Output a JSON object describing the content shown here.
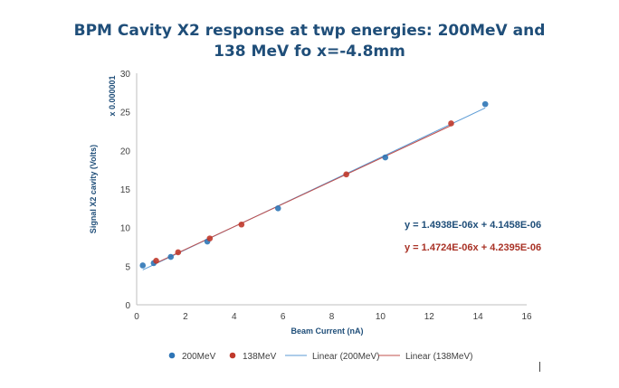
{
  "chart_data": {
    "type": "scatter",
    "title": [
      "BPM Cavity X2 response at twp energies: 200MeV and",
      "138 MeV fo x=-4.8mm"
    ],
    "xlabel": "Beam Current (nA)",
    "ylabel": "Signal X2 cavity (Volts)",
    "yscale_label": "x 0.000001",
    "xlim": [
      0,
      16
    ],
    "ylim": [
      0,
      30
    ],
    "xticks": [
      "0",
      "2",
      "4",
      "6",
      "8",
      "10",
      "12",
      "14",
      "16"
    ],
    "yticks": [
      "0",
      "5",
      "10",
      "15",
      "20",
      "25",
      "30"
    ],
    "grid": false,
    "legend_position": "bottom",
    "series": [
      {
        "name": "200MeV",
        "kind": "points",
        "color": "#2e75b6",
        "points": [
          [
            0.25,
            5.1
          ],
          [
            0.7,
            5.4
          ],
          [
            1.4,
            6.2
          ],
          [
            2.9,
            8.2
          ],
          [
            5.8,
            12.5
          ],
          [
            10.2,
            19.1
          ],
          [
            14.3,
            26.0
          ]
        ]
      },
      {
        "name": "138MeV",
        "kind": "points",
        "color": "#c0392b",
        "points": [
          [
            0.8,
            5.7
          ],
          [
            1.7,
            6.8
          ],
          [
            3.0,
            8.6
          ],
          [
            4.3,
            10.4
          ],
          [
            8.6,
            16.9
          ],
          [
            12.9,
            23.5
          ]
        ]
      },
      {
        "name": "Linear (200MeV)",
        "kind": "line",
        "color": "#5b9bd5",
        "equation": "y = 1.4938E-06x + 4.1458E-06",
        "slope": 1.4938,
        "intercept": 4.1458,
        "range": [
          0.25,
          14.3
        ]
      },
      {
        "name": "Linear (138MeV)",
        "kind": "line",
        "color": "#c0504d",
        "equation": "y = 1.4724E-06x + 4.2395E-06",
        "slope": 1.4724,
        "intercept": 4.2395,
        "range": [
          0.8,
          12.9
        ]
      }
    ]
  },
  "colors": {
    "title": "#1f4e79",
    "axis": "#bfbfbf",
    "tick_text": "#404040",
    "label_text": "#1f4e79"
  }
}
